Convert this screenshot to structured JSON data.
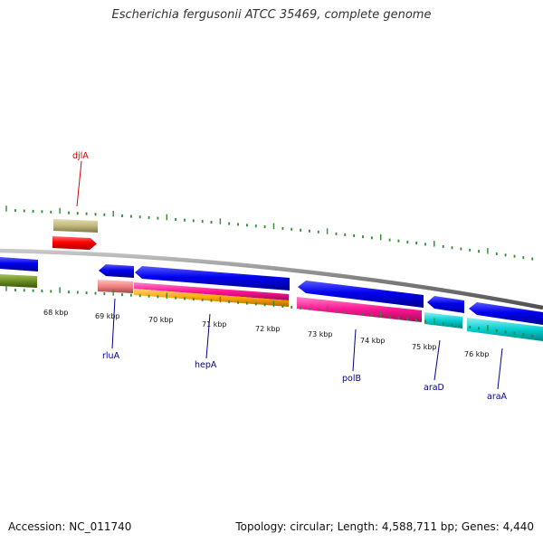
{
  "title": "Escherichia fergusonii ATCC 35469, complete genome",
  "footer": {
    "accession": "Accession: NC_011740",
    "summary": "Topology: circular; Length: 4,588,711 bp; Genes: 4,440"
  },
  "scale_labels": [
    "68 kbp",
    "69 kbp",
    "70 kbp",
    "71 kbp",
    "72 kbp",
    "73 kbp",
    "74 kbp",
    "75 kbp",
    "76 kbp"
  ],
  "colors": {
    "backbone": "#808080",
    "ticks": "#2e8b2e",
    "forward_gene": "#c0b87a",
    "forward_cds": "#ff0000",
    "reverse_gene": "#0000ee",
    "reverse_trna": "#6b8e23",
    "rlua_misc": "#f08080",
    "hepa_misc": "#ff1493",
    "hepa_other": "#ffa500",
    "polb_misc": "#ff1493",
    "ara_misc": "#00ced1"
  },
  "gene_labels": [
    {
      "name": "djlA",
      "color": "#dd0000"
    },
    {
      "name": "rluA",
      "color": "#00008b"
    },
    {
      "name": "hepA",
      "color": "#00008b"
    },
    {
      "name": "polB",
      "color": "#00008b"
    },
    {
      "name": "araD",
      "color": "#00008b"
    },
    {
      "name": "araA",
      "color": "#00008b"
    }
  ]
}
